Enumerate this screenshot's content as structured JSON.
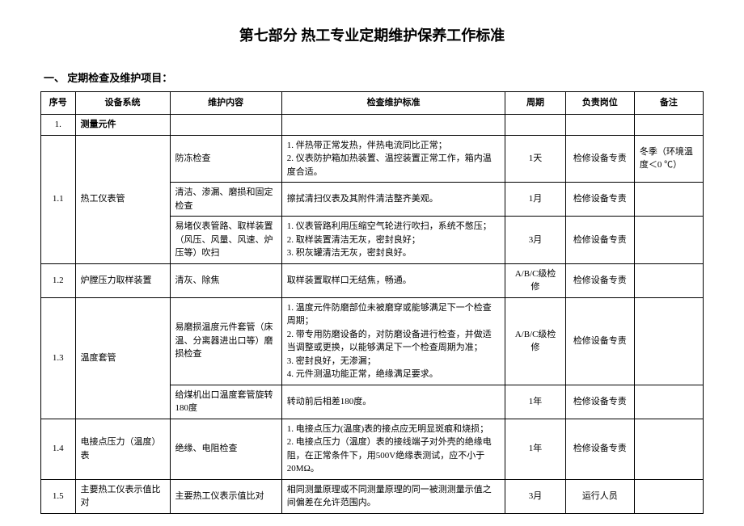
{
  "title": "第七部分  热工专业定期维护保养工作标准",
  "section_heading": "一、  定期检查及维护项目：",
  "headers": {
    "idx": "序号",
    "sys": "设备系统",
    "maint": "维护内容",
    "std": "检查维护标准",
    "period": "周期",
    "resp": "负责岗位",
    "note": "备注"
  },
  "rows": {
    "r1": {
      "idx": "1.",
      "sys": "测量元件"
    },
    "r11a": {
      "idx": "1.1",
      "sys": "热工仪表管",
      "maint": "防冻检查",
      "std": "1. 伴热带正常发热，伴热电流同比正常；\n2. 仪表防护箱加热装置、温控装置正常工作，箱内温度合适。",
      "period": "1天",
      "resp": "检修设备专责",
      "note": "冬季（环境温度＜0 ℃）"
    },
    "r11b": {
      "maint": "清洁、渗漏、磨损和固定检查",
      "std": "擦拭清扫仪表及其附件清洁整齐美观。",
      "period": "1月",
      "resp": "检修设备专责",
      "note": ""
    },
    "r11c": {
      "maint": "易堵仪表管路、取样装置（风压、风量、风速、炉压等）吹扫",
      "std": "1. 仪表管路利用压缩空气轮进行吹扫，系统不憋压；\n2. 取样装置清洁无灰，密封良好；\n3. 积灰罐清洁无灰，密封良好。",
      "period": "3月",
      "resp": "检修设备专责",
      "note": ""
    },
    "r12": {
      "idx": "1.2",
      "sys": "炉膛压力取样装置",
      "maint": "清灰、除焦",
      "std": "取样装置取样口无结焦，畅通。",
      "period": "A/B/C级检修",
      "resp": "检修设备专责",
      "note": ""
    },
    "r13a": {
      "idx": "1.3",
      "sys": "温度套管",
      "maint": "易磨损温度元件套管（床温、分离器进出口等）磨损检查",
      "std": "1. 温度元件防磨部位未被磨穿或能够满足下一个检查周期；\n2. 带专用防磨设备的，对防磨设备进行检查，并做适当调整或更换，以能够满足下一个检查周期为准；\n3. 密封良好，无渗漏；\n4. 元件测温功能正常，绝缘满足要求。",
      "period": "A/B/C级检修",
      "resp": "检修设备专责",
      "note": ""
    },
    "r13b": {
      "maint": "给煤机出口温度套管旋转180度",
      "std": "转动前后相差180度。",
      "period": "1年",
      "resp": "检修设备专责",
      "note": ""
    },
    "r14": {
      "idx": "1.4",
      "sys": "电接点压力（温度）表",
      "maint": "绝缘、电阻检查",
      "std": "1. 电接点压力(温度)表的接点应无明显斑痕和烧损；\n2. 电接点压力（温度）表的接线端子对外壳的绝缘电阻，在正常条件下，用500V绝缘表测试，应不小于20MΩ。",
      "period": "1年",
      "resp": "检修设备专责",
      "note": ""
    },
    "r15": {
      "idx": "1.5",
      "sys": "主要热工仪表示值比对",
      "maint": "主要热工仪表示值比对",
      "std": "相同测量原理或不同测量原理的同一被测测量示值之间偏差在允许范围内。",
      "period": "3月",
      "resp": "运行人员",
      "note": ""
    }
  }
}
